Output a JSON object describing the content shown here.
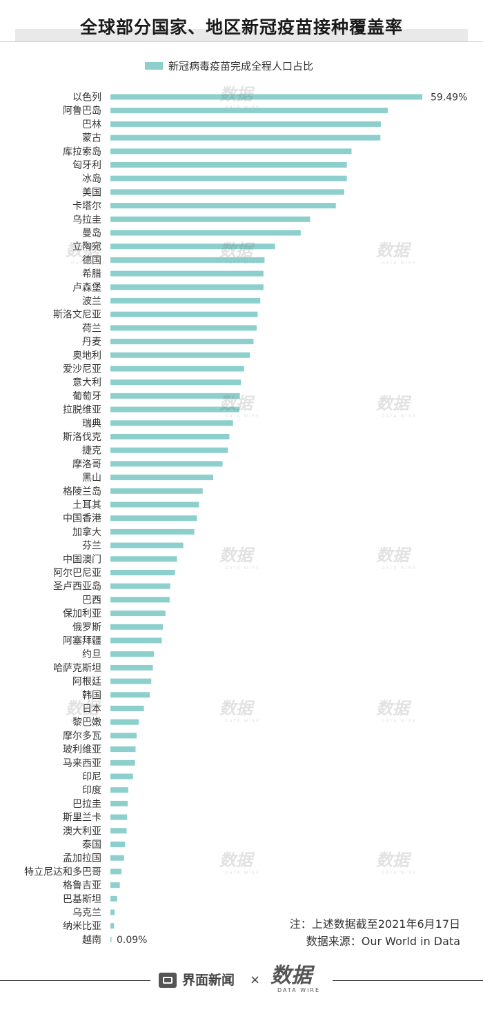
{
  "title": "全球部分国家、地区新冠疫苗接种覆盖率",
  "watermark": {
    "mark": "数据",
    "sub": "DATA WIRE"
  },
  "notes": {
    "line1": "注：上述数据截至2021年6月17日",
    "line2": "数据来源：Our World in Data"
  },
  "footer": {
    "brand_name": "界面新闻",
    "times": "×",
    "logo_text": "数据",
    "logo_sub": "DATA WIRE"
  },
  "colors": {
    "bar": "#8ccfcc",
    "text": "#333333"
  },
  "icons": {
    "brand": "jiemian-news-icon"
  },
  "chart_data": {
    "type": "bar",
    "orientation": "horizontal",
    "legend": {
      "placement": "top",
      "label": "新冠病毒疫苗完成全程人口占比"
    },
    "series": [
      {
        "name": "新冠病毒疫苗完成全程人口占比"
      }
    ],
    "unit": "%",
    "xlim": [
      0,
      60
    ],
    "grid": false,
    "data_labels": {
      "first": "59.49%",
      "last": "0.09%"
    },
    "categories": [
      "以色列",
      "阿鲁巴岛",
      "巴林",
      "蒙古",
      "库拉索岛",
      "匈牙利",
      "冰岛",
      "美国",
      "卡塔尔",
      "乌拉圭",
      "曼岛",
      "立陶宛",
      "德国",
      "希腊",
      "卢森堡",
      "波兰",
      "斯洛文尼亚",
      "荷兰",
      "丹麦",
      "奥地利",
      "爱沙尼亚",
      "意大利",
      "葡萄牙",
      "拉脱维亚",
      "瑞典",
      "斯洛伐克",
      "捷克",
      "摩洛哥",
      "黑山",
      "格陵兰岛",
      "土耳其",
      "中国香港",
      "加拿大",
      "芬兰",
      "中国澳门",
      "阿尔巴尼亚",
      "圣卢西亚岛",
      "巴西",
      "保加利亚",
      "俄罗斯",
      "阿塞拜疆",
      "约旦",
      "哈萨克斯坦",
      "阿根廷",
      "韩国",
      "日本",
      "黎巴嫩",
      "摩尔多瓦",
      "玻利维亚",
      "马来西亚",
      "印尼",
      "印度",
      "巴拉圭",
      "斯里兰卡",
      "澳大利亚",
      "泰国",
      "孟加拉国",
      "特立尼达和多巴哥",
      "格鲁吉亚",
      "巴基斯坦",
      "乌克兰",
      "纳米比亚",
      "越南"
    ],
    "values": [
      59.49,
      52.9,
      51.6,
      51.5,
      46.0,
      45.1,
      45.1,
      44.6,
      43.0,
      38.1,
      36.3,
      31.4,
      29.4,
      29.2,
      29.2,
      28.6,
      28.1,
      27.9,
      27.3,
      26.6,
      25.5,
      24.9,
      24.7,
      24.6,
      23.4,
      22.7,
      22.4,
      21.4,
      19.6,
      17.6,
      16.9,
      16.5,
      16.0,
      13.9,
      12.7,
      12.3,
      11.4,
      11.3,
      10.5,
      10.0,
      9.8,
      8.3,
      8.1,
      7.8,
      7.5,
      6.4,
      5.4,
      5.0,
      4.8,
      4.7,
      4.3,
      3.4,
      3.3,
      3.2,
      3.1,
      2.8,
      2.6,
      2.1,
      1.8,
      1.3,
      0.8,
      0.7,
      0.09
    ]
  }
}
